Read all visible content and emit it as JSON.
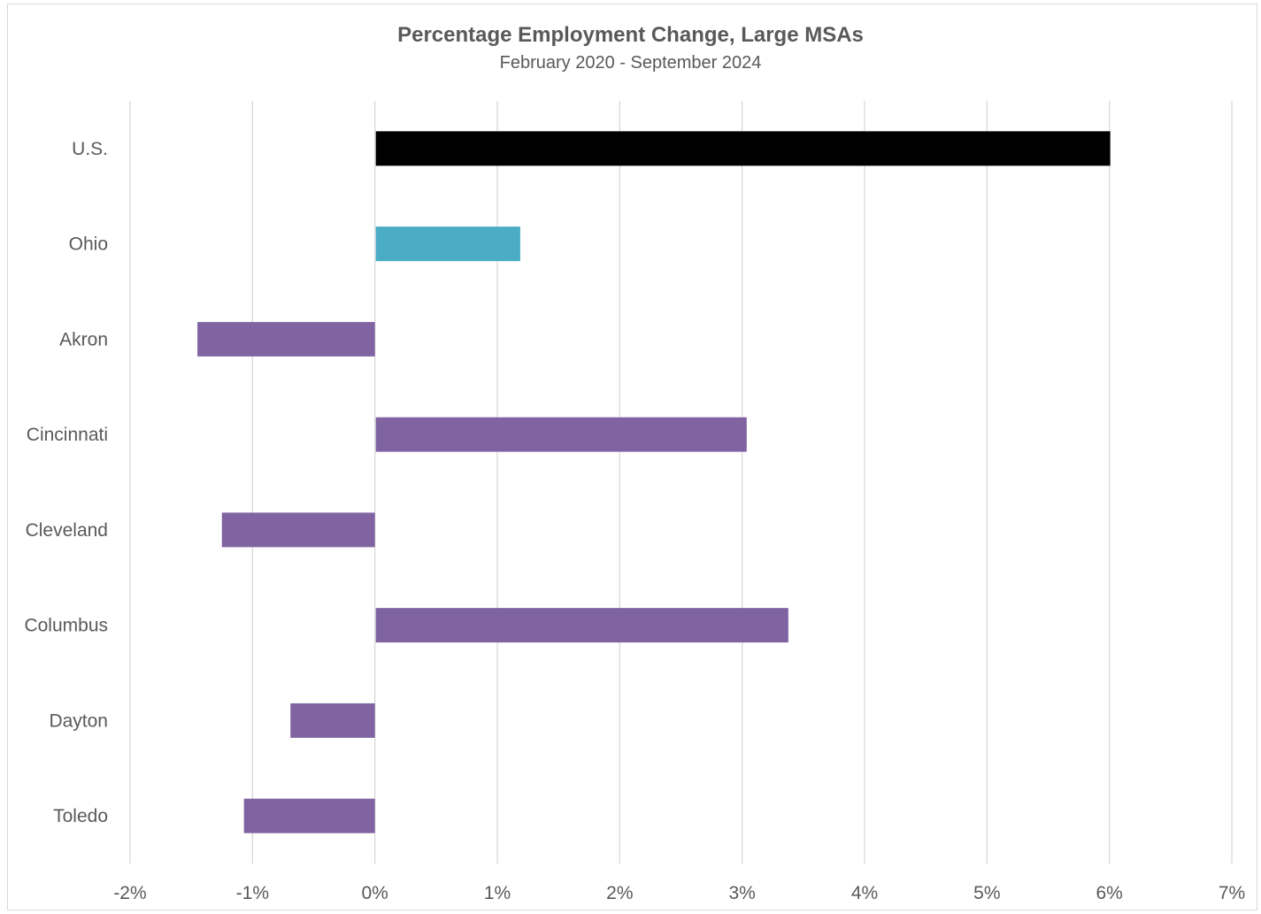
{
  "chart_data": {
    "type": "bar",
    "orientation": "horizontal",
    "title": "Percentage Employment Change, Large MSAs",
    "subtitle": "February 2020 - September 2024",
    "xlabel": "",
    "ylabel": "",
    "xlim": [
      -2,
      7
    ],
    "x_ticks": [
      -2,
      -1,
      0,
      1,
      2,
      3,
      4,
      5,
      6,
      7
    ],
    "x_tick_labels": [
      "-2%",
      "-1%",
      "0%",
      "1%",
      "2%",
      "3%",
      "4%",
      "5%",
      "6%",
      "7%"
    ],
    "grid": "vertical",
    "legend": "none",
    "categories": [
      "U.S.",
      "Ohio",
      "Akron",
      "Cincinnati",
      "Cleveland",
      "Columbus",
      "Dayton",
      "Toledo"
    ],
    "values": [
      6.0,
      1.18,
      -1.45,
      3.03,
      -1.25,
      3.37,
      -0.69,
      -1.07
    ],
    "colors": [
      "#000000",
      "#4bacc6",
      "#8064a2",
      "#8064a2",
      "#8064a2",
      "#8064a2",
      "#8064a2",
      "#8064a2"
    ],
    "gridline_color": "#d9d9d9"
  }
}
